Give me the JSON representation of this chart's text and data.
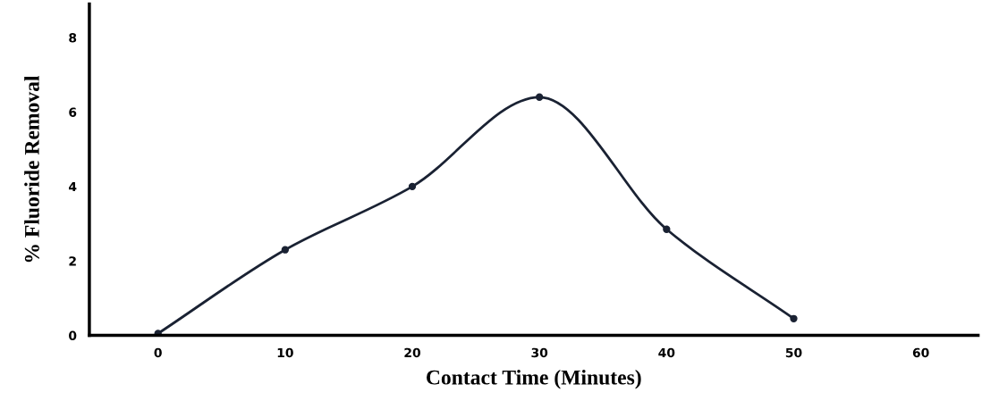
{
  "chart_data": {
    "type": "line",
    "xlabel": "Contact Time (Minutes)",
    "ylabel": "% Fluoride Removal",
    "x": [
      0,
      10,
      20,
      30,
      40,
      50
    ],
    "series": [
      {
        "color": "#1a2233",
        "values": [
          0.05,
          2.3,
          4.0,
          6.4,
          2.85,
          0.45
        ]
      }
    ],
    "xlim": [
      -5.4,
      64.5
    ],
    "xticks": [
      0,
      10,
      20,
      30,
      40,
      50,
      60
    ],
    "ylim": [
      0,
      8.9
    ],
    "yticks": [
      0,
      2,
      4,
      6,
      8
    ],
    "marker": "circle",
    "line_style": "solid",
    "grid": false,
    "legend": false
  }
}
